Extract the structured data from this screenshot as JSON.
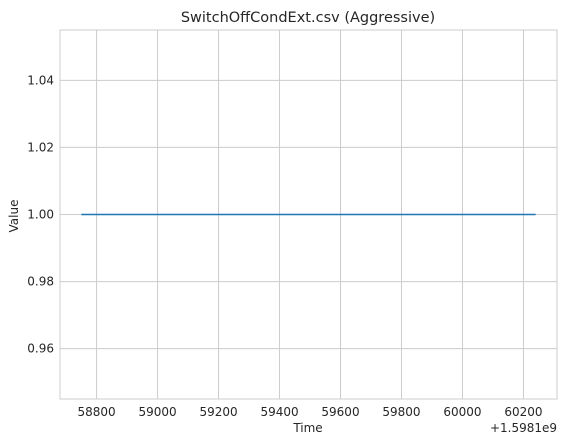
{
  "chart_data": {
    "type": "line",
    "title": "SwitchOffCondExt.csv (Aggressive)",
    "xlabel": "Time",
    "ylabel": "Value",
    "x_offset_label": "+1.5981e9",
    "xlim": [
      58680,
      60310
    ],
    "ylim": [
      0.945,
      1.055
    ],
    "x_ticks": [
      58800,
      59000,
      59200,
      59400,
      59600,
      59800,
      60000,
      60200
    ],
    "x_tick_labels": [
      "58800",
      "59000",
      "59200",
      "59400",
      "59600",
      "59800",
      "60000",
      "60200"
    ],
    "y_ticks": [
      0.96,
      0.98,
      1.0,
      1.02,
      1.04
    ],
    "y_tick_labels": [
      "0.96",
      "0.98",
      "1.00",
      "1.02",
      "1.04"
    ],
    "grid": true,
    "series": [
      {
        "color": "#1f77b4",
        "x": [
          58750,
          60240
        ],
        "y": [
          1.0,
          1.0
        ]
      }
    ]
  }
}
